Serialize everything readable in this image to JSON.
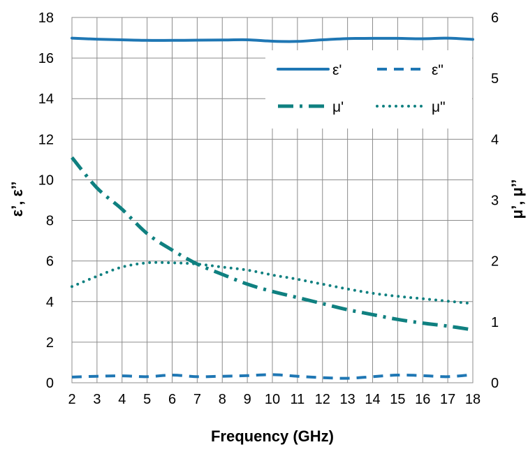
{
  "chart_data": {
    "type": "line",
    "title": "",
    "xlabel": "Frequency (GHz)",
    "ylabel_left": "ε’, ε’’",
    "ylabel_right": "μ’, μ’’",
    "xlim": [
      2,
      18
    ],
    "ylim_left": [
      0,
      18
    ],
    "ylim_right": [
      0,
      6
    ],
    "x_ticks": [
      2,
      3,
      4,
      5,
      6,
      7,
      8,
      9,
      10,
      11,
      12,
      13,
      14,
      15,
      16,
      17,
      18
    ],
    "y_ticks_left": [
      0,
      2,
      4,
      6,
      8,
      10,
      12,
      14,
      16,
      18
    ],
    "y_ticks_right": [
      0,
      1,
      2,
      3,
      4,
      5,
      6
    ],
    "grid": true,
    "legend_position": "top-right",
    "x": [
      2,
      3,
      4,
      5,
      6,
      7,
      8,
      9,
      10,
      11,
      12,
      13,
      14,
      15,
      16,
      17,
      18
    ],
    "series": [
      {
        "name": "ε'",
        "axis": "left",
        "style": "solid",
        "color": "#1f77b4",
        "values": [
          16.98,
          16.93,
          16.9,
          16.87,
          16.87,
          16.88,
          16.89,
          16.9,
          16.83,
          16.82,
          16.9,
          16.96,
          16.97,
          16.97,
          16.95,
          16.98,
          16.92
        ]
      },
      {
        "name": "ε\"",
        "axis": "left",
        "style": "dashed",
        "color": "#1f77b4",
        "values": [
          0.28,
          0.32,
          0.34,
          0.3,
          0.38,
          0.3,
          0.32,
          0.35,
          0.4,
          0.32,
          0.25,
          0.22,
          0.3,
          0.38,
          0.35,
          0.3,
          0.4
        ]
      },
      {
        "name": "μ'",
        "axis": "right",
        "style": "dashdot",
        "color": "#0f8080",
        "values": [
          3.7,
          3.2,
          2.85,
          2.45,
          2.18,
          1.95,
          1.78,
          1.62,
          1.5,
          1.4,
          1.3,
          1.2,
          1.12,
          1.04,
          0.98,
          0.93,
          0.87
        ]
      },
      {
        "name": "μ\"",
        "axis": "right",
        "style": "dotted",
        "color": "#0f8080",
        "values": [
          1.58,
          1.75,
          1.9,
          1.97,
          1.97,
          1.95,
          1.9,
          1.85,
          1.77,
          1.7,
          1.62,
          1.54,
          1.47,
          1.42,
          1.38,
          1.34,
          1.3
        ]
      }
    ]
  }
}
